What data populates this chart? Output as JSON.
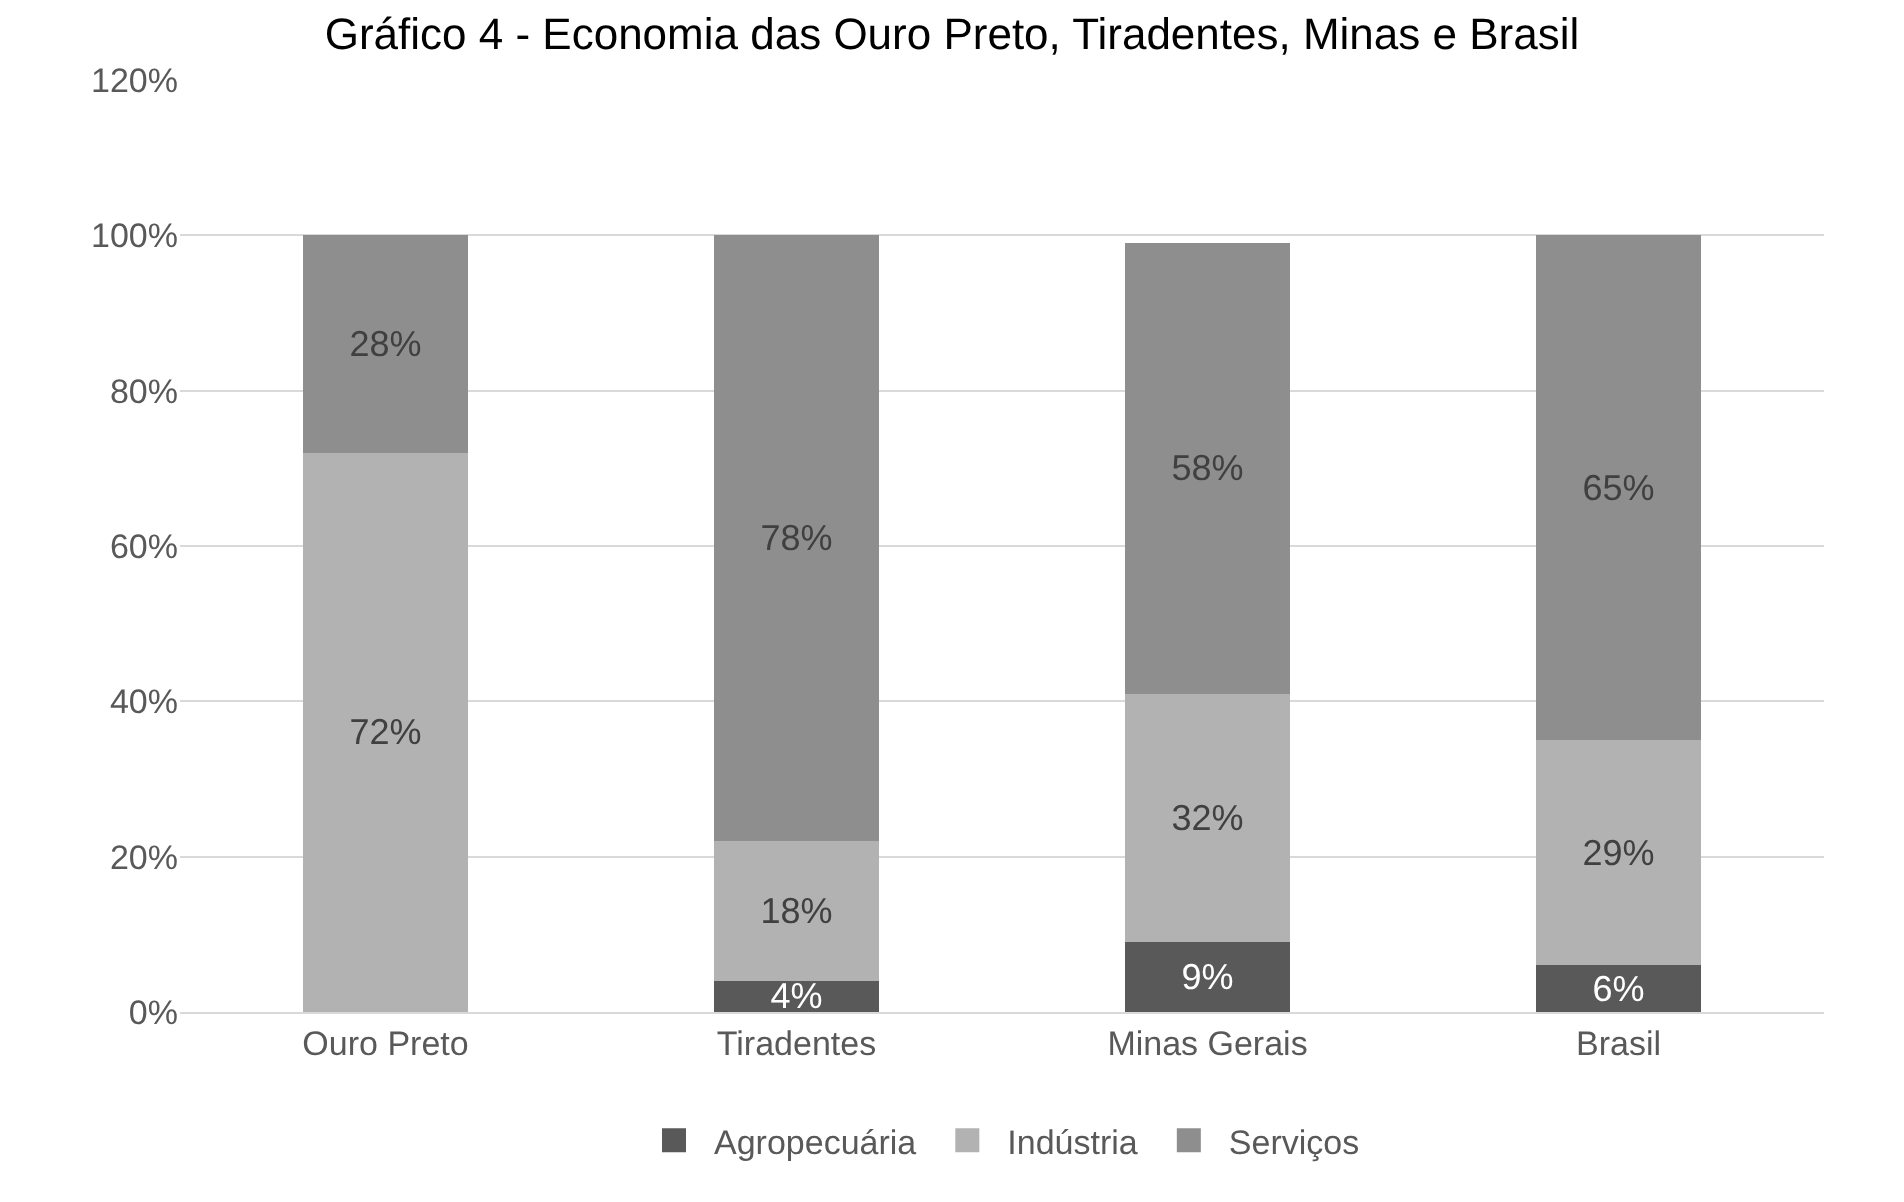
{
  "chart_data": {
    "type": "bar",
    "title": "Gráfico 4 - Economia das Ouro Preto, Tiradentes, Minas e Brasil",
    "categories": [
      "Ouro Preto",
      "Tiradentes",
      "Minas Gerais",
      "Brasil"
    ],
    "stacked": true,
    "series": [
      {
        "name": "Agropecuária",
        "color": "#595959",
        "values": [
          0,
          4,
          9,
          6
        ],
        "value_labels": [
          null,
          "4%",
          "9%",
          "6%"
        ]
      },
      {
        "name": "Indústria",
        "color": "#b2b2b2",
        "values": [
          72,
          18,
          32,
          29
        ],
        "value_labels": [
          "72%",
          "18%",
          "32%",
          "29%"
        ]
      },
      {
        "name": "Serviços",
        "color": "#8e8e8e",
        "values": [
          28,
          78,
          58,
          65
        ],
        "value_labels": [
          "28%",
          "78%",
          "58%",
          "65%"
        ]
      }
    ],
    "ylim": [
      0,
      120
    ],
    "yticks": [
      {
        "value": 0,
        "label": "0%"
      },
      {
        "value": 20,
        "label": "20%"
      },
      {
        "value": 40,
        "label": "40%"
      },
      {
        "value": 60,
        "label": "60%"
      },
      {
        "value": 80,
        "label": "80%"
      },
      {
        "value": 100,
        "label": "100%"
      },
      {
        "value": 120,
        "label": "120%"
      }
    ],
    "grid": "y",
    "legend": "bottom"
  }
}
